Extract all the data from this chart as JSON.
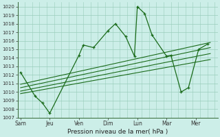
{
  "title": "",
  "xlabel": "Pression niveau de la mer( hPa )",
  "ylabel": "",
  "bg_color": "#cceee8",
  "grid_color": "#99ccbb",
  "line_color": "#1a6b1a",
  "ylim": [
    1007,
    1020.5
  ],
  "yticks": [
    1007,
    1008,
    1009,
    1010,
    1011,
    1012,
    1013,
    1014,
    1015,
    1016,
    1017,
    1018,
    1019,
    1020
  ],
  "x_labels": [
    "Sam",
    "Jeu",
    "Ven",
    "Dim",
    "Lun",
    "Mar",
    "Mer"
  ],
  "x_positions": [
    0,
    2,
    4,
    6,
    8,
    10,
    12
  ],
  "xlim": [
    -0.2,
    13.5
  ],
  "series1_x": [
    0,
    1,
    1.5,
    2,
    4,
    4.3,
    5,
    6,
    6.5,
    7.2,
    7.8,
    8,
    8.5,
    9,
    10,
    10.3,
    11,
    11.5,
    12.2,
    12.8
  ],
  "series1_y": [
    1012.3,
    1009.5,
    1008.7,
    1007.5,
    1014.3,
    1015.5,
    1015.2,
    1017.2,
    1018.0,
    1016.5,
    1014.2,
    1020.0,
    1019.2,
    1016.7,
    1014.2,
    1014.3,
    1010.0,
    1010.5,
    1015.0,
    1015.6
  ],
  "trend_lines": [
    {
      "x": [
        0,
        13.0
      ],
      "y": [
        1009.8,
        1013.8
      ]
    },
    {
      "x": [
        0,
        13.0
      ],
      "y": [
        1010.1,
        1014.5
      ]
    },
    {
      "x": [
        0,
        13.0
      ],
      "y": [
        1010.5,
        1015.2
      ]
    },
    {
      "x": [
        0,
        13.0
      ],
      "y": [
        1010.9,
        1015.8
      ]
    }
  ]
}
